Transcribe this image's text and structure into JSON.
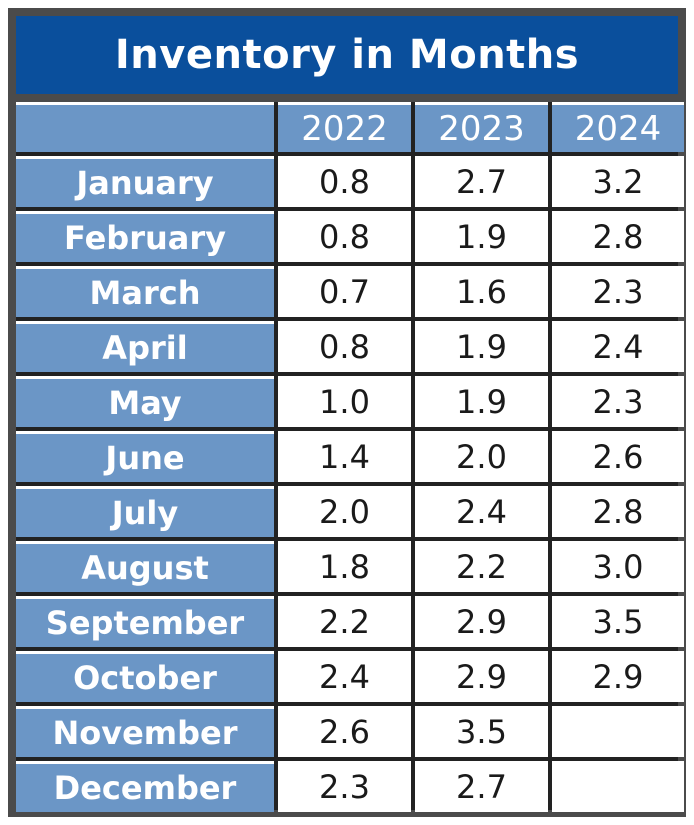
{
  "chart_data": {
    "type": "table",
    "title": "Inventory in Months",
    "columns": [
      "2022",
      "2023",
      "2024"
    ],
    "rows": [
      {
        "month": "January",
        "values": [
          "0.8",
          "2.7",
          "3.2"
        ]
      },
      {
        "month": "February",
        "values": [
          "0.8",
          "1.9",
          "2.8"
        ]
      },
      {
        "month": "March",
        "values": [
          "0.7",
          "1.6",
          "2.3"
        ]
      },
      {
        "month": "April",
        "values": [
          "0.8",
          "1.9",
          "2.4"
        ]
      },
      {
        "month": "May",
        "values": [
          "1.0",
          "1.9",
          "2.3"
        ]
      },
      {
        "month": "June",
        "values": [
          "1.4",
          "2.0",
          "2.6"
        ]
      },
      {
        "month": "July",
        "values": [
          "2.0",
          "2.4",
          "2.8"
        ]
      },
      {
        "month": "August",
        "values": [
          "1.8",
          "2.2",
          "3.0"
        ]
      },
      {
        "month": "September",
        "values": [
          "2.2",
          "2.9",
          "3.5"
        ]
      },
      {
        "month": "October",
        "values": [
          "2.4",
          "2.9",
          "2.9"
        ]
      },
      {
        "month": "November",
        "values": [
          "2.6",
          "3.5",
          ""
        ]
      },
      {
        "month": "December",
        "values": [
          "2.3",
          "2.7",
          ""
        ]
      }
    ]
  },
  "colors": {
    "title_background": "#0a4f9c",
    "header_background": "#6b96c6",
    "frame": "#4b4b4b",
    "cell_background": "#ffffff"
  }
}
